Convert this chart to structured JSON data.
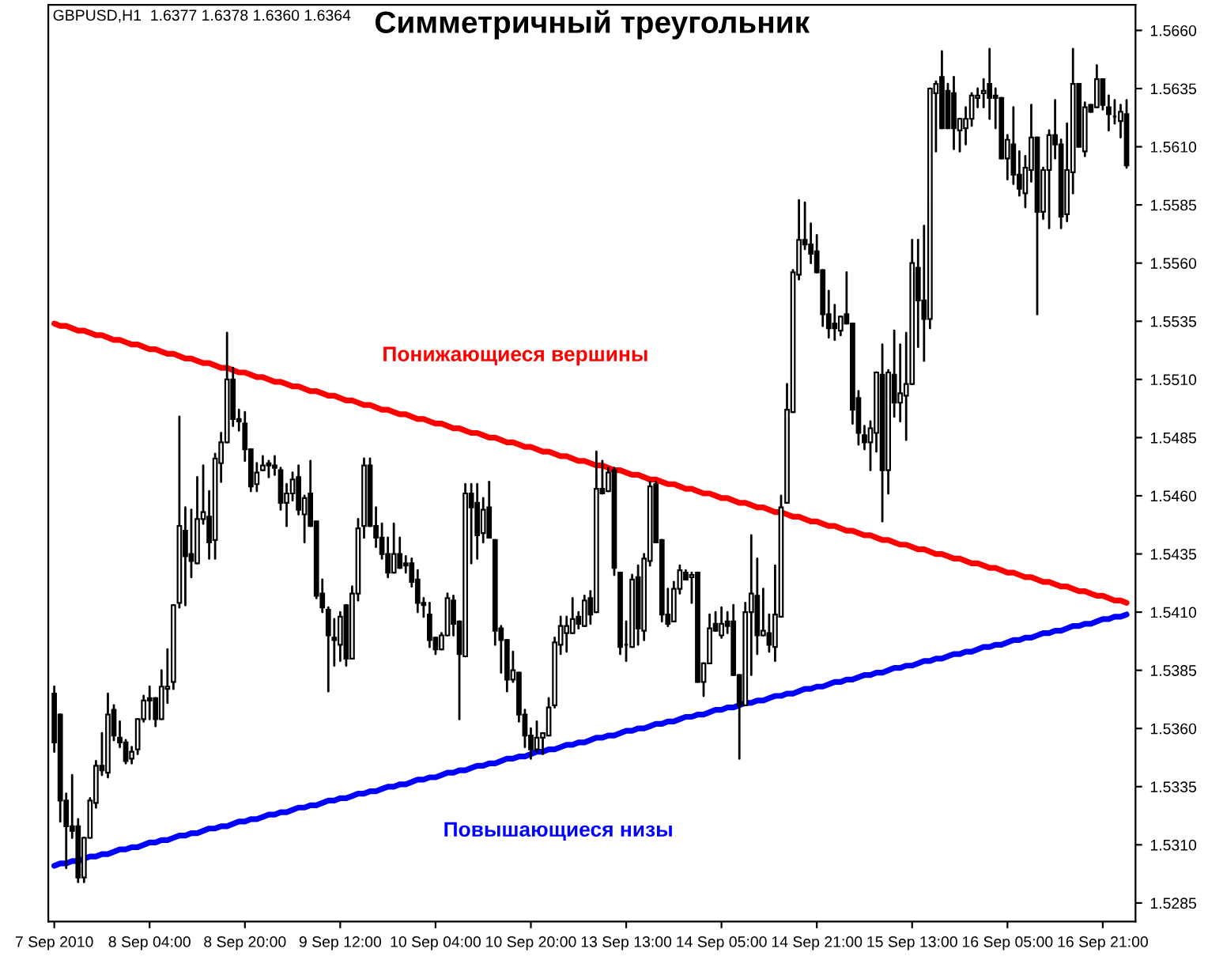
{
  "chart_data": {
    "type": "candlestick",
    "title": "Симметричный треугольник",
    "annotations": [
      "GBPUSD,H1  1.6377 1.6378 1.6360 1.6364"
    ],
    "categories": [
      "7 Sep 2010",
      null,
      null,
      null,
      null,
      null,
      null,
      null,
      null,
      null,
      null,
      null,
      null,
      null,
      null,
      null,
      "8 Sep 04:00",
      null,
      null,
      null,
      null,
      null,
      null,
      null,
      null,
      null,
      null,
      null,
      null,
      null,
      null,
      null,
      "8 Sep 20:00",
      null,
      null,
      null,
      null,
      null,
      null,
      null,
      null,
      null,
      null,
      null,
      null,
      null,
      null,
      null,
      "9 Sep 12:00",
      null,
      null,
      null,
      null,
      null,
      null,
      null,
      null,
      null,
      null,
      null,
      null,
      null,
      null,
      null,
      "10 Sep 04:00",
      null,
      null,
      null,
      null,
      null,
      null,
      null,
      null,
      null,
      null,
      null,
      null,
      null,
      null,
      null,
      "10 Sep 20:00",
      null,
      null,
      null,
      null,
      null,
      null,
      null,
      null,
      null,
      null,
      null,
      null,
      null,
      null,
      null,
      "13 Sep 13:00",
      null,
      null,
      null,
      null,
      null,
      null,
      null,
      null,
      null,
      null,
      null,
      null,
      null,
      null,
      null,
      "14 Sep 05:00",
      null,
      null,
      null,
      null,
      null,
      null,
      null,
      null,
      null,
      null,
      null,
      null,
      null,
      null,
      null,
      "14 Sep 21:00",
      null,
      null,
      null,
      null,
      null,
      null,
      null,
      null,
      null,
      null,
      null,
      null,
      null,
      null,
      null,
      "15 Sep 13:00",
      null,
      null,
      null,
      null,
      null,
      null,
      null,
      null,
      null,
      null,
      null,
      null,
      null,
      null,
      null,
      "16 Sep 05:00",
      null,
      null,
      null,
      null,
      null,
      null,
      null,
      null,
      null,
      null,
      null,
      null,
      null,
      null,
      null,
      "16 Sep 21:00",
      null,
      null,
      null,
      null
    ],
    "ohlc": [
      [
        1.5375,
        1.5378,
        1.535,
        1.5354
      ],
      [
        1.5366,
        1.5366,
        1.532,
        1.5329
      ],
      [
        1.5329,
        1.5332,
        1.53,
        1.5318
      ],
      [
        1.5318,
        1.534,
        1.5313,
        1.5316
      ],
      [
        1.5318,
        1.5321,
        1.5294,
        1.5296
      ],
      [
        1.5296,
        1.5313,
        1.5294,
        1.5313
      ],
      [
        1.5313,
        1.533,
        1.5313,
        1.5329
      ],
      [
        1.5328,
        1.5346,
        1.5326,
        1.5344
      ],
      [
        1.5344,
        1.5358,
        1.534,
        1.5342
      ],
      [
        1.5341,
        1.5375,
        1.5339,
        1.5366
      ],
      [
        1.5368,
        1.537,
        1.5355,
        1.5357
      ],
      [
        1.5356,
        1.5363,
        1.5352,
        1.5354
      ],
      [
        1.5354,
        1.5355,
        1.5345,
        1.5346
      ],
      [
        1.5347,
        1.5352,
        1.5345,
        1.535
      ],
      [
        1.5351,
        1.5364,
        1.5349,
        1.5364
      ],
      [
        1.5364,
        1.5374,
        1.5363,
        1.5372
      ],
      [
        1.5373,
        1.5378,
        1.5364,
        1.5372
      ],
      [
        1.5373,
        1.5373,
        1.5361,
        1.5364
      ],
      [
        1.5364,
        1.5385,
        1.5364,
        1.5378
      ],
      [
        1.5377,
        1.5394,
        1.5371,
        1.5378
      ],
      [
        1.538,
        1.5413,
        1.5377,
        1.5413
      ],
      [
        1.5414,
        1.5494,
        1.5412,
        1.5447
      ],
      [
        1.5445,
        1.5455,
        1.5413,
        1.5434
      ],
      [
        1.5435,
        1.5454,
        1.5425,
        1.5432
      ],
      [
        1.5431,
        1.5468,
        1.5431,
        1.545
      ],
      [
        1.545,
        1.5473,
        1.5448,
        1.5453
      ],
      [
        1.5451,
        1.5462,
        1.5433,
        1.544
      ],
      [
        1.5441,
        1.5478,
        1.5433,
        1.5476
      ],
      [
        1.5474,
        1.5487,
        1.5466,
        1.5483
      ],
      [
        1.5483,
        1.553,
        1.5483,
        1.551
      ],
      [
        1.551,
        1.5515,
        1.549,
        1.5493
      ],
      [
        1.5493,
        1.5497,
        1.5488,
        1.5492
      ],
      [
        1.5491,
        1.5496,
        1.5475,
        1.548
      ],
      [
        1.548,
        1.548,
        1.5462,
        1.5464
      ],
      [
        1.5465,
        1.5474,
        1.5462,
        1.547
      ],
      [
        1.5471,
        1.5477,
        1.5471,
        1.5473
      ],
      [
        1.5474,
        1.5475,
        1.5468,
        1.5473
      ],
      [
        1.5473,
        1.5477,
        1.5469,
        1.5472
      ],
      [
        1.5471,
        1.5472,
        1.5454,
        1.5457
      ],
      [
        1.5457,
        1.5465,
        1.5447,
        1.5461
      ],
      [
        1.5461,
        1.547,
        1.5458,
        1.5467
      ],
      [
        1.5468,
        1.5473,
        1.5452,
        1.5454
      ],
      [
        1.5452,
        1.546,
        1.544,
        1.5459
      ],
      [
        1.5461,
        1.5475,
        1.5447,
        1.5447
      ],
      [
        1.5449,
        1.5449,
        1.5416,
        1.5417
      ],
      [
        1.5418,
        1.5424,
        1.541,
        1.5412
      ],
      [
        1.5411,
        1.5412,
        1.5376,
        1.54
      ],
      [
        1.5399,
        1.5407,
        1.5387,
        1.5398
      ],
      [
        1.5396,
        1.541,
        1.5389,
        1.5408
      ],
      [
        1.5413,
        1.5413,
        1.5387,
        1.539
      ],
      [
        1.539,
        1.5421,
        1.539,
        1.5418
      ],
      [
        1.5418,
        1.545,
        1.5415,
        1.5446
      ],
      [
        1.5447,
        1.5476,
        1.5442,
        1.5473
      ],
      [
        1.5473,
        1.5476,
        1.5447,
        1.5447
      ],
      [
        1.5447,
        1.5455,
        1.5438,
        1.5442
      ],
      [
        1.5442,
        1.5448,
        1.5433,
        1.5435
      ],
      [
        1.5435,
        1.5442,
        1.5425,
        1.5427
      ],
      [
        1.5427,
        1.5448,
        1.5427,
        1.5435
      ],
      [
        1.5435,
        1.5442,
        1.5429,
        1.5429
      ],
      [
        1.5431,
        1.5434,
        1.5427,
        1.543
      ],
      [
        1.5431,
        1.5433,
        1.5421,
        1.5423
      ],
      [
        1.5424,
        1.5428,
        1.541,
        1.5414
      ],
      [
        1.5414,
        1.5416,
        1.5408,
        1.5413
      ],
      [
        1.5409,
        1.5414,
        1.5395,
        1.5398
      ],
      [
        1.5399,
        1.5399,
        1.5392,
        1.5394
      ],
      [
        1.5394,
        1.5401,
        1.5394,
        1.54
      ],
      [
        1.54,
        1.5418,
        1.54,
        1.5416
      ],
      [
        1.5415,
        1.5417,
        1.54,
        1.5405
      ],
      [
        1.5406,
        1.5406,
        1.5364,
        1.5392
      ],
      [
        1.5391,
        1.5465,
        1.5391,
        1.5461
      ],
      [
        1.5461,
        1.5465,
        1.5431,
        1.5455
      ],
      [
        1.5457,
        1.5465,
        1.5433,
        1.5443
      ],
      [
        1.5444,
        1.5459,
        1.544,
        1.5454
      ],
      [
        1.5455,
        1.5466,
        1.5442,
        1.5442
      ],
      [
        1.5441,
        1.5441,
        1.5396,
        1.5402
      ],
      [
        1.5403,
        1.5404,
        1.5384,
        1.5398
      ],
      [
        1.5398,
        1.5398,
        1.5376,
        1.5381
      ],
      [
        1.5381,
        1.5393,
        1.538,
        1.5385
      ],
      [
        1.5384,
        1.5384,
        1.5363,
        1.5366
      ],
      [
        1.5366,
        1.5368,
        1.5352,
        1.5357
      ],
      [
        1.5357,
        1.536,
        1.5347,
        1.5351
      ],
      [
        1.5351,
        1.5363,
        1.535,
        1.5356
      ],
      [
        1.5356,
        1.5358,
        1.5349,
        1.5358
      ],
      [
        1.5357,
        1.5373,
        1.5357,
        1.5369
      ],
      [
        1.537,
        1.5399,
        1.5369,
        1.5397
      ],
      [
        1.5396,
        1.5408,
        1.5392,
        1.5404
      ],
      [
        1.5401,
        1.5408,
        1.5393,
        1.5404
      ],
      [
        1.5401,
        1.5416,
        1.5401,
        1.5407
      ],
      [
        1.5408,
        1.541,
        1.5403,
        1.5405
      ],
      [
        1.5404,
        1.5417,
        1.5404,
        1.5415
      ],
      [
        1.5416,
        1.5419,
        1.5405,
        1.5409
      ],
      [
        1.541,
        1.5479,
        1.541,
        1.5463
      ],
      [
        1.5463,
        1.5475,
        1.5461,
        1.5461
      ],
      [
        1.5462,
        1.5472,
        1.5462,
        1.547
      ],
      [
        1.5471,
        1.5472,
        1.5426,
        1.5429
      ],
      [
        1.5427,
        1.5427,
        1.5392,
        1.5395
      ],
      [
        1.5396,
        1.5406,
        1.5389,
        1.5396
      ],
      [
        1.5395,
        1.5426,
        1.5395,
        1.5424
      ],
      [
        1.5425,
        1.543,
        1.5396,
        1.5403
      ],
      [
        1.5402,
        1.5435,
        1.5398,
        1.5433
      ],
      [
        1.5432,
        1.5466,
        1.543,
        1.5464
      ],
      [
        1.5465,
        1.5466,
        1.544,
        1.544
      ],
      [
        1.5441,
        1.5441,
        1.5406,
        1.5409
      ],
      [
        1.5409,
        1.542,
        1.5404,
        1.5405
      ],
      [
        1.5406,
        1.5423,
        1.5406,
        1.542
      ],
      [
        1.542,
        1.543,
        1.5418,
        1.5428
      ],
      [
        1.5427,
        1.5428,
        1.5424,
        1.5424
      ],
      [
        1.5425,
        1.5427,
        1.5414,
        1.5426
      ],
      [
        1.5427,
        1.5427,
        1.538,
        1.538
      ],
      [
        1.538,
        1.5388,
        1.5374,
        1.5388
      ],
      [
        1.5388,
        1.5409,
        1.5388,
        1.5403
      ],
      [
        1.5405,
        1.541,
        1.5402,
        1.5402
      ],
      [
        1.54,
        1.5412,
        1.5399,
        1.5405
      ],
      [
        1.5406,
        1.541,
        1.5401,
        1.5404
      ],
      [
        1.5406,
        1.5413,
        1.5383,
        1.5383
      ],
      [
        1.5383,
        1.5383,
        1.5347,
        1.537
      ],
      [
        1.537,
        1.5414,
        1.537,
        1.541
      ],
      [
        1.541,
        1.5443,
        1.5383,
        1.5418
      ],
      [
        1.5417,
        1.5433,
        1.5392,
        1.54
      ],
      [
        1.54,
        1.542,
        1.54,
        1.5402
      ],
      [
        1.5401,
        1.5409,
        1.5393,
        1.5396
      ],
      [
        1.5395,
        1.543,
        1.5389,
        1.5409
      ],
      [
        1.5408,
        1.546,
        1.5408,
        1.5455
      ],
      [
        1.5457,
        1.5508,
        1.5457,
        1.5497
      ],
      [
        1.5496,
        1.5557,
        1.5496,
        1.5556
      ],
      [
        1.5555,
        1.5587,
        1.5553,
        1.557
      ],
      [
        1.557,
        1.5586,
        1.5566,
        1.5568
      ],
      [
        1.5568,
        1.5577,
        1.556,
        1.5564
      ],
      [
        1.5565,
        1.5572,
        1.5556,
        1.5556
      ],
      [
        1.5557,
        1.5557,
        1.5533,
        1.5538
      ],
      [
        1.5538,
        1.5548,
        1.5528,
        1.5532
      ],
      [
        1.5534,
        1.5542,
        1.5527,
        1.5532
      ],
      [
        1.5531,
        1.5537,
        1.5529,
        1.5537
      ],
      [
        1.5538,
        1.5556,
        1.5534,
        1.5534
      ],
      [
        1.5534,
        1.5534,
        1.5491,
        1.5497
      ],
      [
        1.5502,
        1.5505,
        1.5482,
        1.5487
      ],
      [
        1.5486,
        1.549,
        1.548,
        1.5483
      ],
      [
        1.5483,
        1.5492,
        1.5471,
        1.5489
      ],
      [
        1.5487,
        1.5513,
        1.5479,
        1.5513
      ],
      [
        1.5512,
        1.5525,
        1.5449,
        1.5471
      ],
      [
        1.5471,
        1.5514,
        1.5461,
        1.5513
      ],
      [
        1.5512,
        1.5531,
        1.5494,
        1.55
      ],
      [
        1.55,
        1.5525,
        1.5492,
        1.5504
      ],
      [
        1.5503,
        1.553,
        1.5484,
        1.5508
      ],
      [
        1.5508,
        1.557,
        1.5508,
        1.556
      ],
      [
        1.5558,
        1.557,
        1.5524,
        1.5544
      ],
      [
        1.5544,
        1.5576,
        1.5518,
        1.5536
      ],
      [
        1.5536,
        1.5635,
        1.5532,
        1.5635
      ],
      [
        1.5633,
        1.5638,
        1.5608,
        1.5637
      ],
      [
        1.564,
        1.5651,
        1.5618,
        1.5618
      ],
      [
        1.5634,
        1.5637,
        1.5618,
        1.5618
      ],
      [
        1.5633,
        1.564,
        1.5609,
        1.5618
      ],
      [
        1.5617,
        1.5622,
        1.5608,
        1.5622
      ],
      [
        1.5618,
        1.5627,
        1.5611,
        1.5622
      ],
      [
        1.5622,
        1.5633,
        1.5619,
        1.5632
      ],
      [
        1.5631,
        1.5635,
        1.5627,
        1.5632
      ],
      [
        1.5633,
        1.5639,
        1.5627,
        1.5634
      ],
      [
        1.5637,
        1.5652,
        1.5622,
        1.5631
      ],
      [
        1.5632,
        1.5635,
        1.5618,
        1.5631
      ],
      [
        1.5631,
        1.5631,
        1.5605,
        1.5605
      ],
      [
        1.5605,
        1.5615,
        1.5596,
        1.5613
      ],
      [
        1.5611,
        1.5627,
        1.5594,
        1.5598
      ],
      [
        1.5598,
        1.5608,
        1.5589,
        1.5592
      ],
      [
        1.559,
        1.5606,
        1.5584,
        1.5601
      ],
      [
        1.56,
        1.5628,
        1.5595,
        1.5614
      ],
      [
        1.5614,
        1.5614,
        1.5538,
        1.5582
      ],
      [
        1.5582,
        1.5601,
        1.5579,
        1.56
      ],
      [
        1.56,
        1.5617,
        1.5575,
        1.5615
      ],
      [
        1.5615,
        1.563,
        1.5605,
        1.5611
      ],
      [
        1.5611,
        1.5613,
        1.5575,
        1.558
      ],
      [
        1.5581,
        1.562,
        1.5578,
        1.56
      ],
      [
        1.5599,
        1.5652,
        1.559,
        1.5637
      ],
      [
        1.5637,
        1.5637,
        1.561,
        1.561
      ],
      [
        1.5608,
        1.5629,
        1.5606,
        1.5627
      ],
      [
        1.5628,
        1.5628,
        1.5625,
        1.5625
      ],
      [
        1.5627,
        1.5645,
        1.5627,
        1.5639
      ],
      [
        1.5639,
        1.5639,
        1.5626,
        1.5628
      ],
      [
        1.5627,
        1.5632,
        1.5617,
        1.5624
      ],
      [
        1.5623,
        1.563,
        1.562,
        1.5623
      ],
      [
        1.5621,
        1.5628,
        1.5614,
        1.5625
      ],
      [
        1.5624,
        1.563,
        1.5601,
        1.5602
      ]
    ],
    "series": [
      {
        "type": "line",
        "name": "Понижающиеся вершины",
        "color": "#ff0000",
        "values": [
          1.5534,
          1.5533,
          1.5533,
          1.5532,
          1.5531,
          1.5531,
          1.553,
          1.5529,
          1.5529,
          1.5528,
          1.5527,
          1.5527,
          1.5526,
          1.5525,
          1.5525,
          1.5524,
          1.5523,
          1.5523,
          1.5522,
          1.5521,
          1.5521,
          1.552,
          1.5519,
          1.5519,
          1.5518,
          1.5517,
          1.5517,
          1.5516,
          1.5515,
          1.5515,
          1.5514,
          1.5513,
          1.5513,
          1.5512,
          1.5511,
          1.5511,
          1.551,
          1.5509,
          1.5509,
          1.5508,
          1.5507,
          1.5507,
          1.5506,
          1.5505,
          1.5505,
          1.5504,
          1.5503,
          1.5503,
          1.5502,
          1.5501,
          1.5501,
          1.55,
          1.5499,
          1.5499,
          1.5498,
          1.5497,
          1.5497,
          1.5496,
          1.5495,
          1.5495,
          1.5494,
          1.5493,
          1.5493,
          1.5492,
          1.5491,
          1.5491,
          1.549,
          1.5489,
          1.5489,
          1.5488,
          1.5487,
          1.5487,
          1.5486,
          1.5485,
          1.5485,
          1.5484,
          1.5483,
          1.5483,
          1.5482,
          1.5481,
          1.5481,
          1.548,
          1.5479,
          1.5479,
          1.5478,
          1.5477,
          1.5477,
          1.5476,
          1.5475,
          1.5475,
          1.5474,
          1.5473,
          1.5473,
          1.5472,
          1.5471,
          1.5471,
          1.547,
          1.5469,
          1.5469,
          1.5468,
          1.5467,
          1.5467,
          1.5466,
          1.5465,
          1.5465,
          1.5464,
          1.5463,
          1.5463,
          1.5462,
          1.5461,
          1.5461,
          1.546,
          1.5459,
          1.5459,
          1.5458,
          1.5457,
          1.5457,
          1.5456,
          1.5455,
          1.5455,
          1.5454,
          1.5453,
          1.5453,
          1.5452,
          1.5451,
          1.5451,
          1.545,
          1.5449,
          1.5449,
          1.5448,
          1.5447,
          1.5447,
          1.5446,
          1.5445,
          1.5445,
          1.5444,
          1.5443,
          1.5443,
          1.5442,
          1.5441,
          1.5441,
          1.544,
          1.5439,
          1.5439,
          1.5438,
          1.5437,
          1.5437,
          1.5436,
          1.5435,
          1.5435,
          1.5434,
          1.5433,
          1.5433,
          1.5432,
          1.5431,
          1.5431,
          1.543,
          1.5429,
          1.5429,
          1.5428,
          1.5427,
          1.5427,
          1.5426,
          1.5425,
          1.5425,
          1.5424,
          1.5423,
          1.5423,
          1.5422,
          1.5421,
          1.5421,
          1.542,
          1.5419,
          1.5419,
          1.5418,
          1.5417,
          1.5417,
          1.5416,
          1.5415,
          1.5415,
          1.5414
        ]
      },
      {
        "type": "line",
        "name": "Повышающиеся низы",
        "color": "#0000ff",
        "values": [
          1.5301,
          1.5302,
          1.5302,
          1.5303,
          1.5303,
          1.5304,
          1.5305,
          1.5305,
          1.5306,
          1.5306,
          1.5307,
          1.5308,
          1.5308,
          1.5309,
          1.5309,
          1.531,
          1.5311,
          1.5311,
          1.5312,
          1.5312,
          1.5313,
          1.5314,
          1.5314,
          1.5315,
          1.5315,
          1.5316,
          1.5317,
          1.5317,
          1.5318,
          1.5318,
          1.5319,
          1.532,
          1.532,
          1.5321,
          1.5321,
          1.5322,
          1.5323,
          1.5323,
          1.5324,
          1.5324,
          1.5325,
          1.5326,
          1.5326,
          1.5327,
          1.5327,
          1.5328,
          1.5329,
          1.5329,
          1.533,
          1.533,
          1.5331,
          1.5332,
          1.5332,
          1.5333,
          1.5333,
          1.5334,
          1.5335,
          1.5335,
          1.5336,
          1.5336,
          1.5337,
          1.5338,
          1.5338,
          1.5339,
          1.5339,
          1.534,
          1.5341,
          1.5341,
          1.5342,
          1.5342,
          1.5343,
          1.5344,
          1.5344,
          1.5345,
          1.5345,
          1.5346,
          1.5347,
          1.5347,
          1.5348,
          1.5348,
          1.5349,
          1.535,
          1.535,
          1.5351,
          1.5351,
          1.5352,
          1.5353,
          1.5353,
          1.5354,
          1.5354,
          1.5355,
          1.5356,
          1.5356,
          1.5357,
          1.5357,
          1.5358,
          1.5359,
          1.5359,
          1.536,
          1.536,
          1.5361,
          1.5362,
          1.5362,
          1.5363,
          1.5363,
          1.5364,
          1.5365,
          1.5365,
          1.5366,
          1.5366,
          1.5367,
          1.5368,
          1.5368,
          1.5369,
          1.5369,
          1.537,
          1.5371,
          1.5371,
          1.5372,
          1.5372,
          1.5373,
          1.5374,
          1.5374,
          1.5375,
          1.5375,
          1.5376,
          1.5377,
          1.5377,
          1.5378,
          1.5378,
          1.5379,
          1.538,
          1.538,
          1.5381,
          1.5381,
          1.5382,
          1.5383,
          1.5383,
          1.5384,
          1.5384,
          1.5385,
          1.5386,
          1.5386,
          1.5387,
          1.5387,
          1.5388,
          1.5389,
          1.5389,
          1.539,
          1.539,
          1.5391,
          1.5392,
          1.5392,
          1.5393,
          1.5393,
          1.5394,
          1.5395,
          1.5395,
          1.5396,
          1.5396,
          1.5397,
          1.5398,
          1.5398,
          1.5399,
          1.5399,
          1.54,
          1.5401,
          1.5401,
          1.5402,
          1.5402,
          1.5403,
          1.5404,
          1.5404,
          1.5405,
          1.5405,
          1.5406,
          1.5407,
          1.5407,
          1.5408,
          1.5408,
          1.5409
        ]
      }
    ],
    "ylim": [
      1.5277,
      1.5671
    ],
    "yticks": [
      1.5285,
      {
        "value": 1.531,
        "label": "1.5310"
      },
      1.5335,
      {
        "value": 1.536,
        "label": "1.5360"
      },
      1.5385,
      {
        "value": 1.541,
        "label": "1.5410"
      },
      1.5435,
      {
        "value": 1.546,
        "label": "1.5460"
      },
      1.5485,
      {
        "value": 1.551,
        "label": "1.5510"
      },
      1.5535,
      {
        "value": 1.556,
        "label": "1.5560"
      },
      1.5585,
      {
        "value": 1.561,
        "label": "1.5610"
      },
      1.5635,
      {
        "value": 1.566,
        "label": "1.5660"
      }
    ],
    "grid": false
  }
}
